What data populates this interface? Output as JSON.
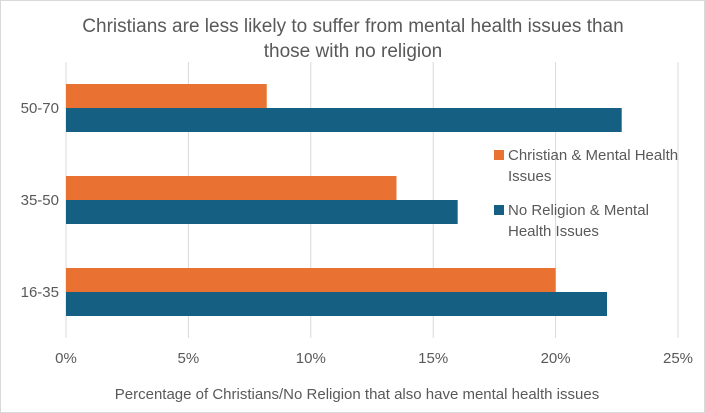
{
  "chart_data": {
    "type": "bar",
    "orientation": "horizontal",
    "title": "Christians are less likely to suffer from mental health issues than those with no religion",
    "title_lines": [
      "Christians are less likely to suffer from mental health issues than",
      "those with no religion"
    ],
    "xlabel": "Percentage of Christians/No Religion that also have mental health issues",
    "ylabel": "",
    "categories": [
      "16-35",
      "35-50",
      "50-70"
    ],
    "series": [
      {
        "name": "Christian & Mental Health Issues",
        "name_lines": [
          "Christian & Mental Health",
          "Issues"
        ],
        "color": "#E97132",
        "values": [
          20.0,
          13.5,
          8.2
        ]
      },
      {
        "name": "No Religion & Mental Health Issues",
        "name_lines": [
          "No Religion & Mental",
          "Health Issues"
        ],
        "color": "#156082",
        "values": [
          22.1,
          16.0,
          22.7
        ]
      }
    ],
    "xlim": [
      0,
      25
    ],
    "x_ticks": [
      "0%",
      "5%",
      "10%",
      "15%",
      "20%",
      "25%"
    ],
    "grid": true,
    "legend": "right"
  }
}
